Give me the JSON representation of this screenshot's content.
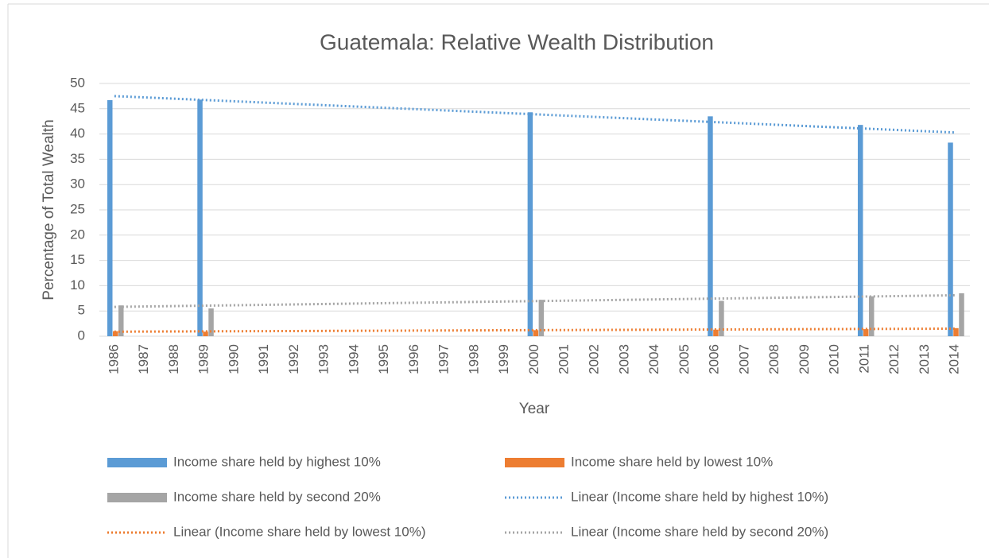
{
  "chart_data": {
    "type": "bar",
    "title": "Guatemala: Relative Wealth Distribution",
    "xlabel": "Year",
    "ylabel": "Percentage of Total Wealth",
    "categories": [
      "1986",
      "1987",
      "1988",
      "1989",
      "1990",
      "1991",
      "1992",
      "1993",
      "1994",
      "1995",
      "1996",
      "1997",
      "1998",
      "1999",
      "2000",
      "2001",
      "2002",
      "2003",
      "2004",
      "2005",
      "2006",
      "2007",
      "2008",
      "2009",
      "2010",
      "2011",
      "2012",
      "2013",
      "2014"
    ],
    "series": [
      {
        "name": "Income share held by highest 10%",
        "color": "#5b9bd5",
        "values": [
          46.7,
          null,
          null,
          46.8,
          null,
          null,
          null,
          null,
          null,
          null,
          null,
          null,
          null,
          null,
          44.3,
          null,
          null,
          null,
          null,
          null,
          43.5,
          null,
          null,
          null,
          null,
          41.8,
          null,
          null,
          38.3
        ]
      },
      {
        "name": "Income share held by lowest 10%",
        "color": "#ed7d31",
        "values": [
          1.0,
          null,
          null,
          0.9,
          null,
          null,
          null,
          null,
          null,
          null,
          null,
          null,
          null,
          null,
          1.2,
          null,
          null,
          null,
          null,
          null,
          1.3,
          null,
          null,
          null,
          null,
          1.4,
          null,
          null,
          1.6
        ]
      },
      {
        "name": "Income share held by second 20%",
        "color": "#a5a5a5",
        "values": [
          6.1,
          null,
          null,
          5.5,
          null,
          null,
          null,
          null,
          null,
          null,
          null,
          null,
          null,
          null,
          7.2,
          null,
          null,
          null,
          null,
          null,
          7.0,
          null,
          null,
          null,
          null,
          7.9,
          null,
          null,
          8.5
        ]
      }
    ],
    "trendlines": [
      {
        "name": "Linear (Income share held by highest 10%)",
        "color": "#5b9bd5",
        "x": [
          "1986",
          "2014"
        ],
        "values": [
          47.5,
          40.3
        ]
      },
      {
        "name": "Linear (Income share held by lowest 10%)",
        "color": "#ed7d31",
        "x": [
          "1986",
          "2014"
        ],
        "values": [
          0.9,
          1.5
        ]
      },
      {
        "name": "Linear (Income share held by second 20%)",
        "color": "#a5a5a5",
        "x": [
          "1986",
          "2014"
        ],
        "values": [
          5.8,
          8.1
        ]
      }
    ],
    "ylim": [
      0,
      50
    ],
    "yticks": [
      0,
      5,
      10,
      15,
      20,
      25,
      30,
      35,
      40,
      45,
      50
    ],
    "grid": true
  }
}
